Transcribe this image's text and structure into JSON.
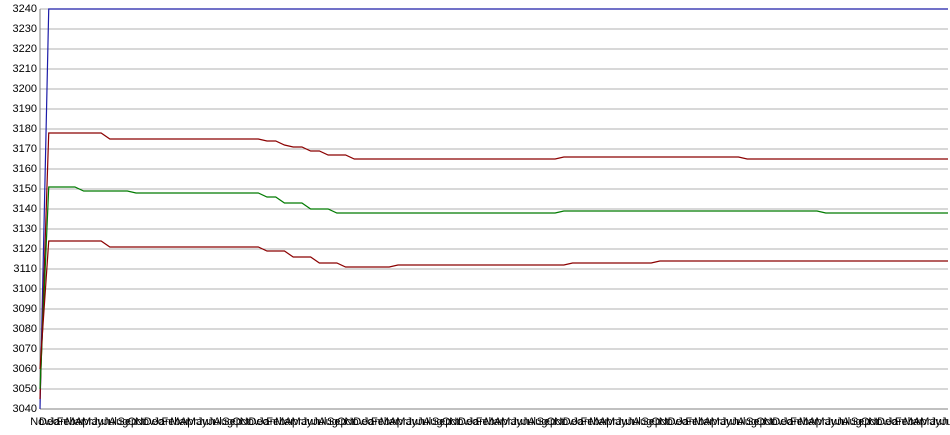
{
  "chart_data": {
    "type": "line",
    "categories": [
      "Nov",
      "Dec",
      "Jan",
      "Feb",
      "Mar",
      "Apr",
      "May",
      "Jun",
      "Jul",
      "Aug",
      "Sep",
      "Oct",
      "Nov",
      "Dec",
      "Jan",
      "Feb",
      "Mar",
      "Apr",
      "May",
      "Jun",
      "Jul",
      "Aug",
      "Sep",
      "Oct",
      "Nov",
      "Dec",
      "Jan",
      "Feb",
      "Mar",
      "Apr",
      "May",
      "Jun",
      "Jul",
      "Aug",
      "Sep",
      "Oct",
      "Nov",
      "Dec",
      "Jan",
      "Feb",
      "Mar",
      "Apr",
      "May",
      "Jun",
      "Jul",
      "Aug",
      "Sep",
      "Oct",
      "Nov",
      "Dec",
      "Jan",
      "Feb",
      "Mar",
      "Apr",
      "May",
      "Jun",
      "Jul",
      "Aug",
      "Sep",
      "Oct",
      "Nov",
      "Dec",
      "Jan",
      "Feb",
      "Mar",
      "Apr",
      "May",
      "Jun",
      "Jul",
      "Aug",
      "Sep",
      "Oct",
      "Nov",
      "Dec",
      "Jan",
      "Feb",
      "Mar",
      "Apr",
      "May",
      "Jun",
      "Jul",
      "Aug",
      "Sep",
      "Oct",
      "Nov",
      "Dec",
      "Jan",
      "Feb",
      "Mar",
      "Apr",
      "May",
      "Jun",
      "Jul",
      "Aug",
      "Sep",
      "Oct",
      "Nov",
      "Dec",
      "Jan",
      "Feb",
      "Mar",
      "Apr",
      "May",
      "Jun",
      "Jul"
    ],
    "series": [
      {
        "color": "#1c1ca8",
        "values": [
          3040,
          3240,
          3240,
          3240,
          3240,
          3240,
          3240,
          3240,
          3240,
          3240,
          3240,
          3240,
          3240,
          3240,
          3240,
          3240,
          3240,
          3240,
          3240,
          3240,
          3240,
          3240,
          3240,
          3240,
          3240,
          3240,
          3240,
          3240,
          3240,
          3240,
          3240,
          3240,
          3240,
          3240,
          3240,
          3240,
          3240,
          3240,
          3240,
          3240,
          3240,
          3240,
          3240,
          3240,
          3240,
          3240,
          3240,
          3240,
          3240,
          3240,
          3240,
          3240,
          3240,
          3240,
          3240,
          3240,
          3240,
          3240,
          3240,
          3240,
          3240,
          3240,
          3240,
          3240,
          3240,
          3240,
          3240,
          3240,
          3240,
          3240,
          3240,
          3240,
          3240,
          3240,
          3240,
          3240,
          3240,
          3240,
          3240,
          3240,
          3240,
          3240,
          3240,
          3240,
          3240,
          3240,
          3240,
          3240,
          3240,
          3240,
          3240,
          3240,
          3240,
          3240,
          3240,
          3240,
          3240,
          3240,
          3240,
          3240,
          3240,
          3240,
          3240,
          3240,
          3240
        ]
      },
      {
        "color": "#8b0000",
        "values": [
          3045,
          3178,
          3178,
          3178,
          3178,
          3178,
          3178,
          3178,
          3175,
          3175,
          3175,
          3175,
          3175,
          3175,
          3175,
          3175,
          3175,
          3175,
          3175,
          3175,
          3175,
          3175,
          3175,
          3175,
          3175,
          3175,
          3174,
          3174,
          3172,
          3171,
          3171,
          3169,
          3169,
          3167,
          3167,
          3167,
          3165,
          3165,
          3165,
          3165,
          3165,
          3165,
          3165,
          3165,
          3165,
          3165,
          3165,
          3165,
          3165,
          3165,
          3165,
          3165,
          3165,
          3165,
          3165,
          3165,
          3165,
          3165,
          3165,
          3165,
          3166,
          3166,
          3166,
          3166,
          3166,
          3166,
          3166,
          3166,
          3166,
          3166,
          3166,
          3166,
          3166,
          3166,
          3166,
          3166,
          3166,
          3166,
          3166,
          3166,
          3166,
          3165,
          3165,
          3165,
          3165,
          3165,
          3165,
          3165,
          3165,
          3165,
          3165,
          3165,
          3165,
          3165,
          3165,
          3165,
          3165,
          3165,
          3165,
          3165,
          3165,
          3165,
          3165,
          3165,
          3165
        ]
      },
      {
        "color": "#007a00",
        "values": [
          3050,
          3151,
          3151,
          3151,
          3151,
          3149,
          3149,
          3149,
          3149,
          3149,
          3149,
          3148,
          3148,
          3148,
          3148,
          3148,
          3148,
          3148,
          3148,
          3148,
          3148,
          3148,
          3148,
          3148,
          3148,
          3148,
          3146,
          3146,
          3143,
          3143,
          3143,
          3140,
          3140,
          3140,
          3138,
          3138,
          3138,
          3138,
          3138,
          3138,
          3138,
          3138,
          3138,
          3138,
          3138,
          3138,
          3138,
          3138,
          3138,
          3138,
          3138,
          3138,
          3138,
          3138,
          3138,
          3138,
          3138,
          3138,
          3138,
          3138,
          3139,
          3139,
          3139,
          3139,
          3139,
          3139,
          3139,
          3139,
          3139,
          3139,
          3139,
          3139,
          3139,
          3139,
          3139,
          3139,
          3139,
          3139,
          3139,
          3139,
          3139,
          3139,
          3139,
          3139,
          3139,
          3139,
          3139,
          3139,
          3139,
          3139,
          3138,
          3138,
          3138,
          3138,
          3138,
          3138,
          3138,
          3138,
          3138,
          3138,
          3138,
          3138,
          3138,
          3138,
          3138
        ]
      },
      {
        "color": "#8b0000",
        "values": [
          3060,
          3124,
          3124,
          3124,
          3124,
          3124,
          3124,
          3124,
          3121,
          3121,
          3121,
          3121,
          3121,
          3121,
          3121,
          3121,
          3121,
          3121,
          3121,
          3121,
          3121,
          3121,
          3121,
          3121,
          3121,
          3121,
          3119,
          3119,
          3119,
          3116,
          3116,
          3116,
          3113,
          3113,
          3113,
          3111,
          3111,
          3111,
          3111,
          3111,
          3111,
          3112,
          3112,
          3112,
          3112,
          3112,
          3112,
          3112,
          3112,
          3112,
          3112,
          3112,
          3112,
          3112,
          3112,
          3112,
          3112,
          3112,
          3112,
          3112,
          3112,
          3113,
          3113,
          3113,
          3113,
          3113,
          3113,
          3113,
          3113,
          3113,
          3113,
          3114,
          3114,
          3114,
          3114,
          3114,
          3114,
          3114,
          3114,
          3114,
          3114,
          3114,
          3114,
          3114,
          3114,
          3114,
          3114,
          3114,
          3114,
          3114,
          3114,
          3114,
          3114,
          3114,
          3114,
          3114,
          3114,
          3114,
          3114,
          3114,
          3114,
          3114,
          3114,
          3114,
          3114
        ]
      }
    ],
    "ylim": [
      3040,
      3240
    ],
    "yticks": [
      3040,
      3050,
      3060,
      3070,
      3080,
      3090,
      3100,
      3110,
      3120,
      3130,
      3140,
      3150,
      3160,
      3170,
      3180,
      3190,
      3200,
      3210,
      3220,
      3230,
      3240
    ],
    "grid": true
  }
}
